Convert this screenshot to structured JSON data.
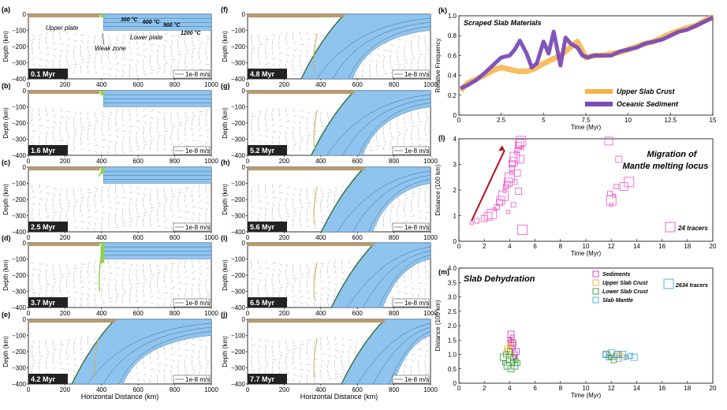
{
  "colors": {
    "upper_plate": "#b99a6e",
    "ocean_plate": "#8fc4ef",
    "weak_zone": "#8fd64a",
    "crust_line": "#2e6f3c",
    "upper_slab_crust": "#f7b244",
    "oceanic_sediment": "#7b4bb8",
    "melting_tracers": "#ee55cc",
    "dehydration_sediments": "#cc33cc",
    "dehydration_upper_slab_crust": "#f0a830",
    "dehydration_lower_slab_crust": "#2f9a3a",
    "dehydration_slab_mantle": "#3aa7e0",
    "arrow": "#b01020"
  },
  "panels": [
    {
      "id": "(a)",
      "time": "0.1 Myr",
      "slab_depth": 0,
      "bend": 0
    },
    {
      "id": "(b)",
      "time": "1.6 Myr",
      "slab_depth": 25,
      "bend": 0
    },
    {
      "id": "(c)",
      "time": "2.5 Myr",
      "slab_depth": 60,
      "bend": 0
    },
    {
      "id": "(d)",
      "time": "3.7 Myr",
      "slab_depth": 300,
      "bend": 0
    },
    {
      "id": "(e)",
      "time": "4.2 Myr",
      "slab_depth": 280,
      "bend": 1
    },
    {
      "id": "(f)",
      "time": "4.8 Myr",
      "slab_depth": 400,
      "bend": 2
    },
    {
      "id": "(g)",
      "time": "5.2 Myr",
      "slab_depth": 400,
      "bend": 3
    },
    {
      "id": "(h)",
      "time": "5.6 Myr",
      "slab_depth": 400,
      "bend": 4
    },
    {
      "id": "(i)",
      "time": "6.5 Myr",
      "slab_depth": 400,
      "bend": 5
    },
    {
      "id": "(j)",
      "time": "7.7 Myr",
      "slab_depth": 400,
      "bend": 6
    }
  ],
  "panel_axes": {
    "ylabel": "Depth (km)",
    "xlabel": "Horizontal Distance (km)",
    "xticks": [
      "0",
      "200",
      "400",
      "600",
      "800",
      "1000"
    ],
    "yticks": [
      "0",
      "−100",
      "−200",
      "−300",
      "−400"
    ],
    "velocity_scale": "1e-8 m/s"
  },
  "annotations_a": {
    "upper_plate": "Upper plate",
    "lower_plate": "Lower plate",
    "weak_zone": "Weak zone",
    "isotherms": [
      "300 °C",
      "600 °C",
      "900 °C",
      "1200 °C"
    ]
  },
  "panel_k": {
    "id": "(k)",
    "title": "Scraped Slab Materials",
    "ylabel": "Relative Frequency",
    "xlabel": "Time (Myr)",
    "xticks": [
      "0",
      "2.5",
      "5",
      "7.5",
      "10",
      "12.5",
      "15"
    ],
    "yticks": [
      "0",
      "0.2",
      "0.4",
      "0.6",
      "0.8",
      "1.0"
    ],
    "legend": [
      "Upper Slab Crust",
      "Oceanic Sediment"
    ]
  },
  "panel_l": {
    "id": "(l)",
    "title_line1": "Migration of",
    "title_line2": "Mantle melting locus",
    "ylabel": "Distance (100 km)",
    "xlabel": "Time (Myr)",
    "xticks": [
      "0",
      "2",
      "4",
      "6",
      "8",
      "10",
      "12",
      "14",
      "16",
      "18",
      "20"
    ],
    "yticks": [
      "0",
      "1",
      "2",
      "3",
      "4"
    ],
    "legend": "24 tracers"
  },
  "panel_m": {
    "id": "(m)",
    "title": "Slab Dehydration",
    "ylabel": "Distance (100 km)",
    "xlabel": "Time (Myr)",
    "xticks": [
      "0",
      "2",
      "4",
      "6",
      "8",
      "10",
      "12",
      "14",
      "16",
      "18",
      "20"
    ],
    "yticks": [
      "0",
      "0.5",
      "1.0",
      "1.5",
      "2.0",
      "2.5",
      "3.0",
      "3.5",
      "4.0"
    ],
    "legend": [
      "Sediments",
      "Upper Slab Crust",
      "Lower Slab Crust",
      "Slab Mantle"
    ],
    "tracer_legend": "2634 tracers"
  },
  "chart_data": [
    {
      "type": "line",
      "title": "Scraped Slab Materials",
      "xlabel": "Time (Myr)",
      "ylabel": "Relative Frequency",
      "xlim": [
        0,
        15
      ],
      "ylim": [
        0,
        1.0
      ],
      "series": [
        {
          "name": "Upper Slab Crust",
          "x": [
            0.1,
            0.5,
            1,
            1.5,
            2,
            2.5,
            3,
            3.5,
            4,
            4.5,
            5,
            5.5,
            6,
            6.5,
            7,
            7.5,
            8,
            8.5,
            9,
            9.5,
            10,
            10.5,
            11,
            11.5,
            12,
            12.5,
            13,
            13.5,
            14,
            14.5,
            15
          ],
          "y": [
            0.25,
            0.32,
            0.36,
            0.4,
            0.45,
            0.48,
            0.46,
            0.44,
            0.44,
            0.47,
            0.52,
            0.56,
            0.6,
            0.67,
            0.74,
            0.58,
            0.6,
            0.6,
            0.62,
            0.63,
            0.66,
            0.69,
            0.72,
            0.74,
            0.78,
            0.82,
            0.85,
            0.88,
            0.9,
            0.95,
            0.99
          ]
        },
        {
          "name": "Oceanic Sediment",
          "x": [
            0.1,
            0.5,
            1,
            1.5,
            2,
            2.5,
            3,
            3.3,
            3.6,
            4,
            4.3,
            4.6,
            5,
            5.3,
            5.6,
            6,
            6.3,
            6.6,
            7,
            7.3,
            7.6,
            8,
            8.5,
            9,
            9.5,
            10,
            10.5,
            11,
            11.5,
            12,
            12.5,
            13,
            13.5,
            14,
            14.5,
            15
          ],
          "y": [
            0.27,
            0.3,
            0.35,
            0.42,
            0.5,
            0.58,
            0.6,
            0.66,
            0.75,
            0.62,
            0.48,
            0.52,
            0.74,
            0.62,
            0.84,
            0.5,
            0.78,
            0.72,
            0.68,
            0.6,
            0.58,
            0.6,
            0.6,
            0.6,
            0.64,
            0.66,
            0.68,
            0.72,
            0.74,
            0.76,
            0.8,
            0.84,
            0.86,
            0.9,
            0.94,
            0.98
          ]
        }
      ]
    },
    {
      "type": "scatter",
      "title": "Migration of Mantle melting locus",
      "xlabel": "Time (Myr)",
      "ylabel": "Distance (100 km)",
      "xlim": [
        0,
        20
      ],
      "ylim": [
        0,
        4.5
      ],
      "series": [
        {
          "name": "24 tracers",
          "x": [
            1.0,
            1.4,
            2.0,
            2.3,
            2.6,
            2.8,
            3.0,
            3.2,
            3.3,
            3.5,
            3.6,
            3.7,
            3.8,
            3.9,
            4.0,
            4.1,
            4.2,
            4.2,
            4.3,
            4.4,
            4.5,
            4.6,
            4.7,
            4.8,
            4.9,
            5.0,
            4.4,
            4.6,
            4.8,
            5.0,
            3.9,
            4.3,
            4.7,
            11.8,
            12.0,
            12.2,
            12.4,
            12.6,
            13.0,
            13.4,
            12.0,
            11.9
          ],
          "y": [
            0.8,
            0.9,
            1.0,
            1.1,
            1.2,
            1.4,
            1.5,
            1.7,
            1.8,
            2.0,
            2.2,
            2.4,
            2.5,
            2.6,
            2.8,
            3.0,
            3.2,
            3.4,
            3.5,
            3.7,
            3.9,
            4.0,
            4.2,
            4.3,
            4.4,
            4.1,
            2.6,
            3.0,
            3.6,
            0.5,
            1.3,
            1.6,
            2.2,
            4.4,
            1.8,
            2.0,
            2.4,
            3.6,
            2.4,
            2.6,
            1.6,
            2.1
          ]
        }
      ]
    },
    {
      "type": "scatter",
      "title": "Slab Dehydration",
      "xlabel": "Time (Myr)",
      "ylabel": "Distance (100 km)",
      "xlim": [
        0,
        20
      ],
      "ylim": [
        0,
        4.0
      ],
      "series": [
        {
          "name": "Sediments",
          "x": [
            4.0,
            4.1,
            4.2,
            4.3,
            4.4,
            4.5,
            4.2,
            4.3,
            4.1,
            4.4
          ],
          "y": [
            1.5,
            1.4,
            1.3,
            1.2,
            1.0,
            1.1,
            1.6,
            1.4,
            1.7,
            0.9
          ]
        },
        {
          "name": "Upper Slab Crust",
          "x": [
            3.8,
            3.9,
            4.0,
            4.1,
            4.2,
            11.8,
            12.1,
            12.4,
            12.7,
            13.0
          ],
          "y": [
            1.2,
            1.1,
            1.3,
            1.0,
            1.4,
            1.0,
            0.9,
            0.95,
            1.0,
            0.9
          ]
        },
        {
          "name": "Lower Slab Crust",
          "x": [
            3.5,
            3.6,
            3.7,
            3.8,
            3.9,
            4.0,
            4.1,
            4.2,
            4.3,
            4.4,
            4.5,
            4.6,
            11.6,
            11.9,
            12.2,
            12.5
          ],
          "y": [
            0.9,
            0.7,
            1.0,
            0.6,
            0.8,
            1.1,
            0.5,
            0.7,
            0.9,
            0.6,
            0.8,
            0.7,
            1.0,
            0.9,
            0.8,
            1.0
          ]
        },
        {
          "name": "Slab Mantle",
          "x": [
            11.5,
            11.8,
            12.0,
            12.3,
            12.6,
            12.9,
            13.2,
            13.5,
            13.8
          ],
          "y": [
            1.0,
            0.9,
            1.05,
            0.95,
            0.85,
            1.0,
            0.9,
            0.95,
            0.9
          ]
        }
      ]
    }
  ]
}
